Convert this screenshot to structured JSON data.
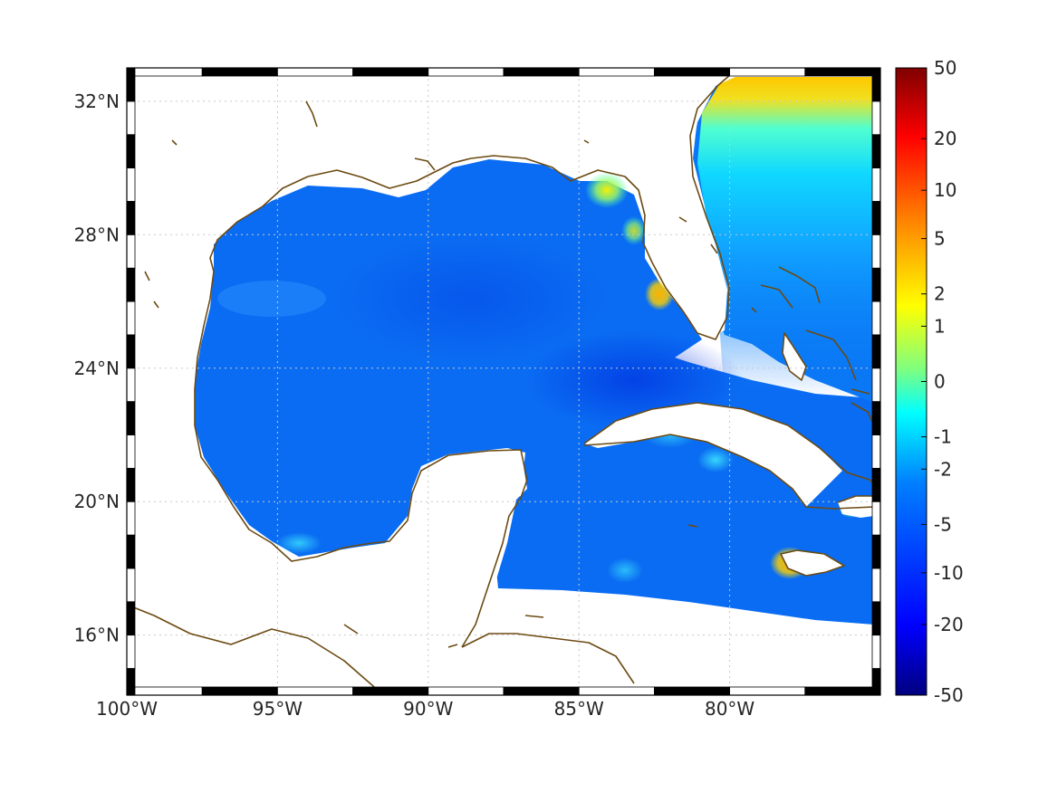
{
  "map": {
    "lon_range": [
      -100,
      -75
    ],
    "lat_range": [
      14.2,
      33
    ],
    "lon_ticks": [
      {
        "value": -100,
        "label": "100°W"
      },
      {
        "value": -95,
        "label": "95°W"
      },
      {
        "value": -90,
        "label": "90°W"
      },
      {
        "value": -85,
        "label": "85°W"
      },
      {
        "value": -80,
        "label": "80°W"
      }
    ],
    "lat_ticks": [
      {
        "value": 16,
        "label": "16°N"
      },
      {
        "value": 20,
        "label": "20°N"
      },
      {
        "value": 24,
        "label": "24°N"
      },
      {
        "value": 28,
        "label": "28°N"
      },
      {
        "value": 32,
        "label": "32°N"
      }
    ],
    "grid": true,
    "frame": "alternating-black-white",
    "coastline_color": "#6b4a12",
    "land_color": "#ffffff",
    "ocean_dominant_color": "#0a64f0"
  },
  "colorbar": {
    "position": "right",
    "colormap": "jet",
    "tick_labels": [
      "50",
      "20",
      "10",
      "5",
      "2",
      "1",
      "0",
      "-1",
      "-2",
      "-5",
      "-10",
      "-20",
      "-50"
    ],
    "tick_values": [
      50,
      20,
      10,
      5,
      2,
      1,
      0,
      -1,
      -2,
      -5,
      -10,
      -20,
      -50
    ]
  }
}
